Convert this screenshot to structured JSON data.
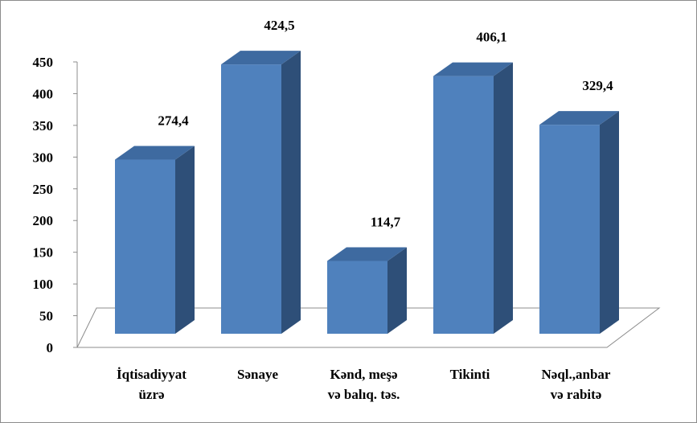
{
  "chart_data": {
    "type": "bar",
    "categories": [
      [
        "İqtisadiyyat",
        "üzrə"
      ],
      [
        "Sənaye"
      ],
      [
        "Kənd, meşə",
        "və balıq. təs."
      ],
      [
        "Tikinti"
      ],
      [
        "Nəql.,anbar",
        "və rabitə"
      ]
    ],
    "values": [
      274.4,
      424.5,
      114.7,
      406.1,
      329.4
    ],
    "data_labels": [
      "274,4",
      "424,5",
      "114,7",
      "406,1",
      "329,4"
    ],
    "y_ticks": [
      "0",
      "50",
      "100",
      "150",
      "200",
      "250",
      "300",
      "350",
      "400",
      "450"
    ],
    "ylim": [
      0,
      450
    ],
    "style": "3d-column",
    "colors": {
      "front": "#4f81bd",
      "side": "#2e4f78",
      "top": "#3e6aa0"
    }
  }
}
